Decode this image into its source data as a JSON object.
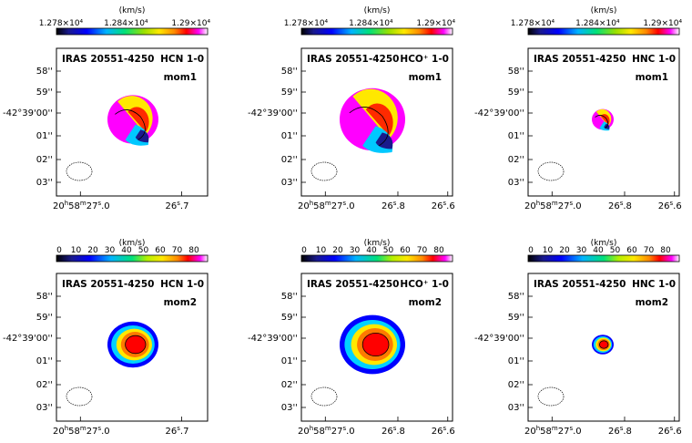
{
  "figure": {
    "colorbars": {
      "velocity": {
        "unit": "(km/s)",
        "ticks": [
          "1.278×10⁴",
          "1.284×10⁴",
          "1.29×10⁴"
        ]
      },
      "dispersion": {
        "unit": "(km/s)",
        "ticks": [
          "0",
          "10",
          "20",
          "30",
          "40",
          "50",
          "60",
          "70",
          "80"
        ]
      }
    },
    "panels": [
      {
        "source": "IRAS 20551-4250",
        "line": "HCN 1-0",
        "moment": "mom1",
        "dec_ticks": [
          "58''",
          "59''",
          "-42°39'00''",
          "01''",
          "02''",
          "03''"
        ],
        "ra_ticks": [
          "20h58m27s.0",
          "26s.7"
        ]
      },
      {
        "source": "IRAS 20551-4250",
        "line": "HCO⁺ 1-0",
        "moment": "mom1",
        "dec_ticks": [
          "58''",
          "59''",
          "-42°39'00''",
          "01''",
          "02''",
          "03''"
        ],
        "ra_ticks": [
          "20h58m27s.0",
          "26s.8",
          "26s.6"
        ]
      },
      {
        "source": "IRAS 20551-4250",
        "line": "HNC 1-0",
        "moment": "mom1",
        "dec_ticks": [
          "58''",
          "59''",
          "-42°39'00''",
          "01''",
          "02''",
          "03''"
        ],
        "ra_ticks": [
          "20h58m27s.0",
          "26s.8",
          "26s.6"
        ]
      },
      {
        "source": "IRAS 20551-4250",
        "line": "HCN 1-0",
        "moment": "mom2",
        "dec_ticks": [
          "58''",
          "59''",
          "-42°39'00''",
          "01''",
          "02''",
          "03''"
        ],
        "ra_ticks": [
          "20h58m27s.0",
          "26s.7"
        ]
      },
      {
        "source": "IRAS 20551-4250",
        "line": "HCO⁺ 1-0",
        "moment": "mom2",
        "dec_ticks": [
          "58''",
          "59''",
          "-42°39'00''",
          "01''",
          "02''",
          "03''"
        ],
        "ra_ticks": [
          "20h58m27s.0",
          "26s.8",
          "26s.6"
        ]
      },
      {
        "source": "IRAS 20551-4250",
        "line": "HNC 1-0",
        "moment": "mom2",
        "dec_ticks": [
          "58''",
          "59''",
          "-42°39'00''",
          "01''",
          "02''",
          "03''"
        ],
        "ra_ticks": [
          "20h58m27s.0",
          "26s.8",
          "26s.6"
        ]
      }
    ]
  }
}
